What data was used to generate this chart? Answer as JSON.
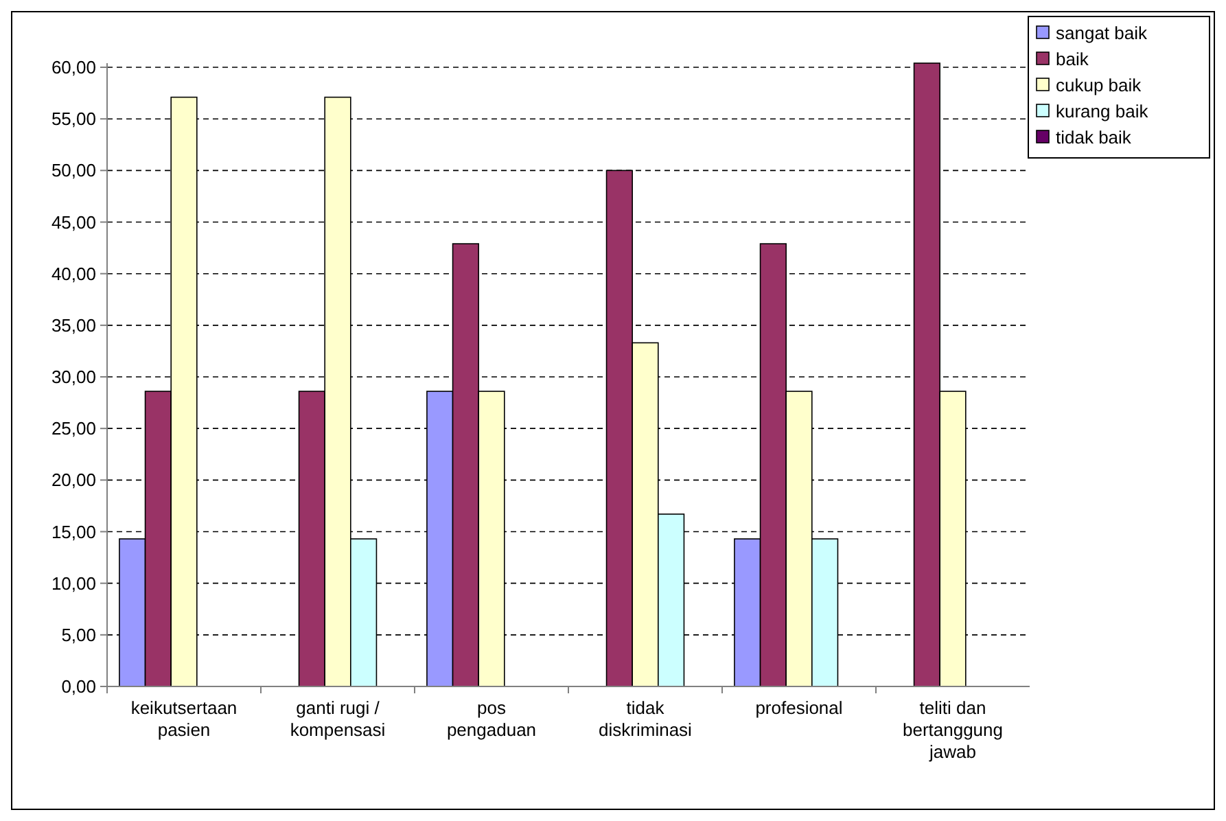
{
  "chart_data": {
    "type": "bar",
    "categories": [
      "keikutsertaan pasien",
      "ganti rugi / kompensasi",
      "pos pengaduan",
      "tidak diskriminasi",
      "profesional",
      "teliti dan bertanggung jawab"
    ],
    "series": [
      {
        "name": "sangat baik",
        "color": "#9999ff",
        "values": [
          14.3,
          null,
          28.6,
          null,
          14.3,
          null
        ]
      },
      {
        "name": "baik",
        "color": "#993366",
        "values": [
          28.6,
          28.6,
          42.9,
          50,
          42.9,
          60.4
        ]
      },
      {
        "name": "cukup baik",
        "color": "#ffffcc",
        "values": [
          57.1,
          57.1,
          28.6,
          33.3,
          28.6,
          28.6
        ]
      },
      {
        "name": "kurang baik",
        "color": "#ccffff",
        "values": [
          null,
          14.3,
          null,
          16.7,
          14.3,
          null
        ]
      },
      {
        "name": "tidak baik",
        "color": "#660066",
        "values": [
          null,
          null,
          null,
          null,
          null,
          null
        ]
      }
    ],
    "ylim": [
      0,
      60.4
    ],
    "yticks": [
      {
        "value": 0,
        "label": "0,00"
      },
      {
        "value": 5,
        "label": "5,00"
      },
      {
        "value": 10,
        "label": "10,00"
      },
      {
        "value": 15,
        "label": "15,00"
      },
      {
        "value": 20,
        "label": "20,00"
      },
      {
        "value": 25,
        "label": "25,00"
      },
      {
        "value": 30,
        "label": "30,00"
      },
      {
        "value": 35,
        "label": "35,00"
      },
      {
        "value": 40,
        "label": "40,00"
      },
      {
        "value": 45,
        "label": "45,00"
      },
      {
        "value": 50,
        "label": "50,00"
      },
      {
        "value": 55,
        "label": "55,00"
      },
      {
        "value": 60,
        "label": "60,00"
      }
    ],
    "grid": "y",
    "legend": "top right"
  }
}
